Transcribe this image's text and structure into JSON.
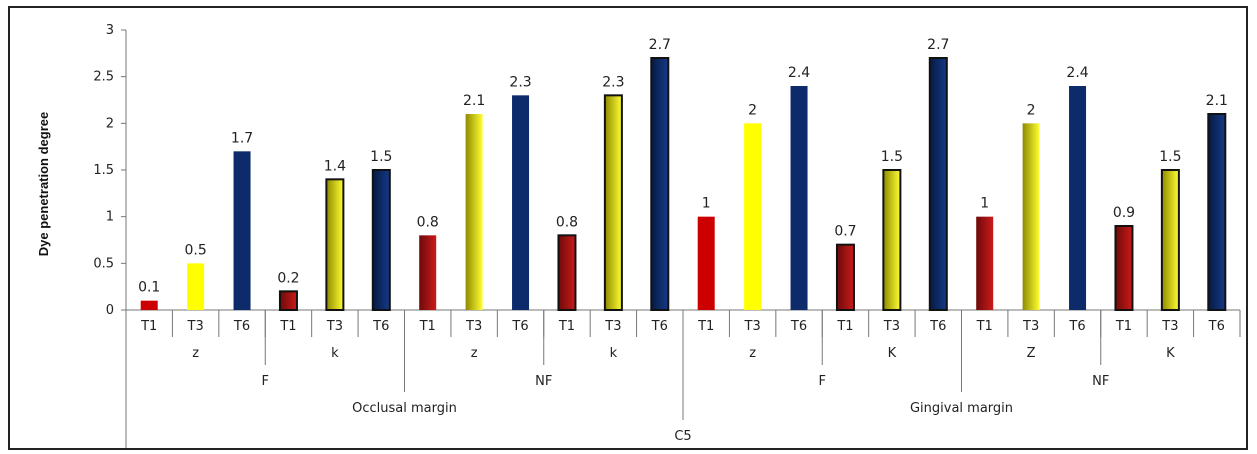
{
  "chart_data": {
    "type": "bar",
    "ylabel": "Dye penetration degree",
    "ylim": [
      0,
      3
    ],
    "yticks": [
      "0",
      "0.5",
      "1",
      "1.5",
      "2",
      "2.5",
      "3"
    ],
    "grid": false,
    "legend": "none",
    "colors": {
      "T1": "#cc0000",
      "T3": "#ffff00",
      "T6": "#0d2a6b",
      "T1_dark": "#8b0a0a",
      "T3_dark": "#b5b000",
      "T6_dark": "#0a1f4f"
    },
    "categories": [
      "T1",
      "T3",
      "T6",
      "T1",
      "T3",
      "T6",
      "T1",
      "T3",
      "T6",
      "T1",
      "T3",
      "T6",
      "T1",
      "T3",
      "T6",
      "T1",
      "T3",
      "T6",
      "T1",
      "T3",
      "T6",
      "T1",
      "T3",
      "T6"
    ],
    "values": [
      0.1,
      0.5,
      1.7,
      0.2,
      1.4,
      1.5,
      0.8,
      2.1,
      2.3,
      0.8,
      2.3,
      2.7,
      1,
      2,
      2.4,
      0.7,
      1.5,
      2.7,
      1,
      2,
      2.4,
      0.9,
      1.5,
      2.1
    ],
    "value_labels": [
      "0.1",
      "0.5",
      "1.7",
      "0.2",
      "1.4",
      "1.5",
      "0.8",
      "2.1",
      "2.3",
      "0.8",
      "2.3",
      "2.7",
      "1",
      "2",
      "2.4",
      "0.7",
      "1.5",
      "2.7",
      "1",
      "2",
      "2.4",
      "0.9",
      "1.5",
      "2.1"
    ],
    "styles": [
      "flat",
      "flat",
      "flat",
      "outlined",
      "outlined",
      "outlined",
      "gradient",
      "gradient",
      "flat",
      "outlined",
      "outlined",
      "outlined",
      "flat",
      "flat",
      "flat",
      "outlined",
      "outlined",
      "outlined",
      "gradient",
      "gradient",
      "flat",
      "outlined",
      "outlined",
      "outlined"
    ],
    "level2": [
      {
        "label": "z",
        "span": 3
      },
      {
        "label": "k",
        "span": 3
      },
      {
        "label": "z",
        "span": 3
      },
      {
        "label": "k",
        "span": 3
      },
      {
        "label": "z",
        "span": 3
      },
      {
        "label": "K",
        "span": 3
      },
      {
        "label": "Z",
        "span": 3
      },
      {
        "label": "K",
        "span": 3
      }
    ],
    "level3": [
      {
        "label": "F",
        "span": 6
      },
      {
        "label": "NF",
        "span": 6
      },
      {
        "label": "F",
        "span": 6
      },
      {
        "label": "NF",
        "span": 6
      }
    ],
    "level4": [
      {
        "label": "Occlusal margin",
        "span": 12
      },
      {
        "label": "Gingival margin",
        "span": 12
      }
    ],
    "level5": [
      {
        "label": "C5",
        "span": 24
      }
    ]
  }
}
